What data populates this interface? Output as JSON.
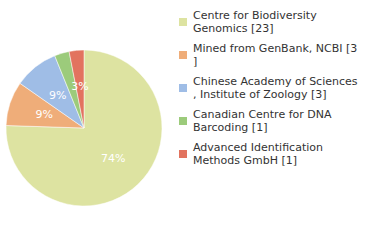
{
  "chart_data": {
    "type": "pie",
    "categories": [
      "Centre for Biodiversity Genomics [23]",
      "Mined from GenBank, NCBI [3]",
      "Chinese Academy of Sciences, Institute of Zoology [3]",
      "Canadian Centre for DNA Barcoding [1]",
      "Advanced Identification Methods GmbH [1]"
    ],
    "values": [
      74,
      9,
      9,
      3,
      3
    ],
    "value_labels": [
      "74%",
      "9%",
      "9%",
      "3%",
      "3%"
    ],
    "colors": [
      "#dde3a1",
      "#efad79",
      "#9fbde6",
      "#9ccb7b",
      "#e2735f"
    ],
    "data_labels": true,
    "legend": "right"
  }
}
